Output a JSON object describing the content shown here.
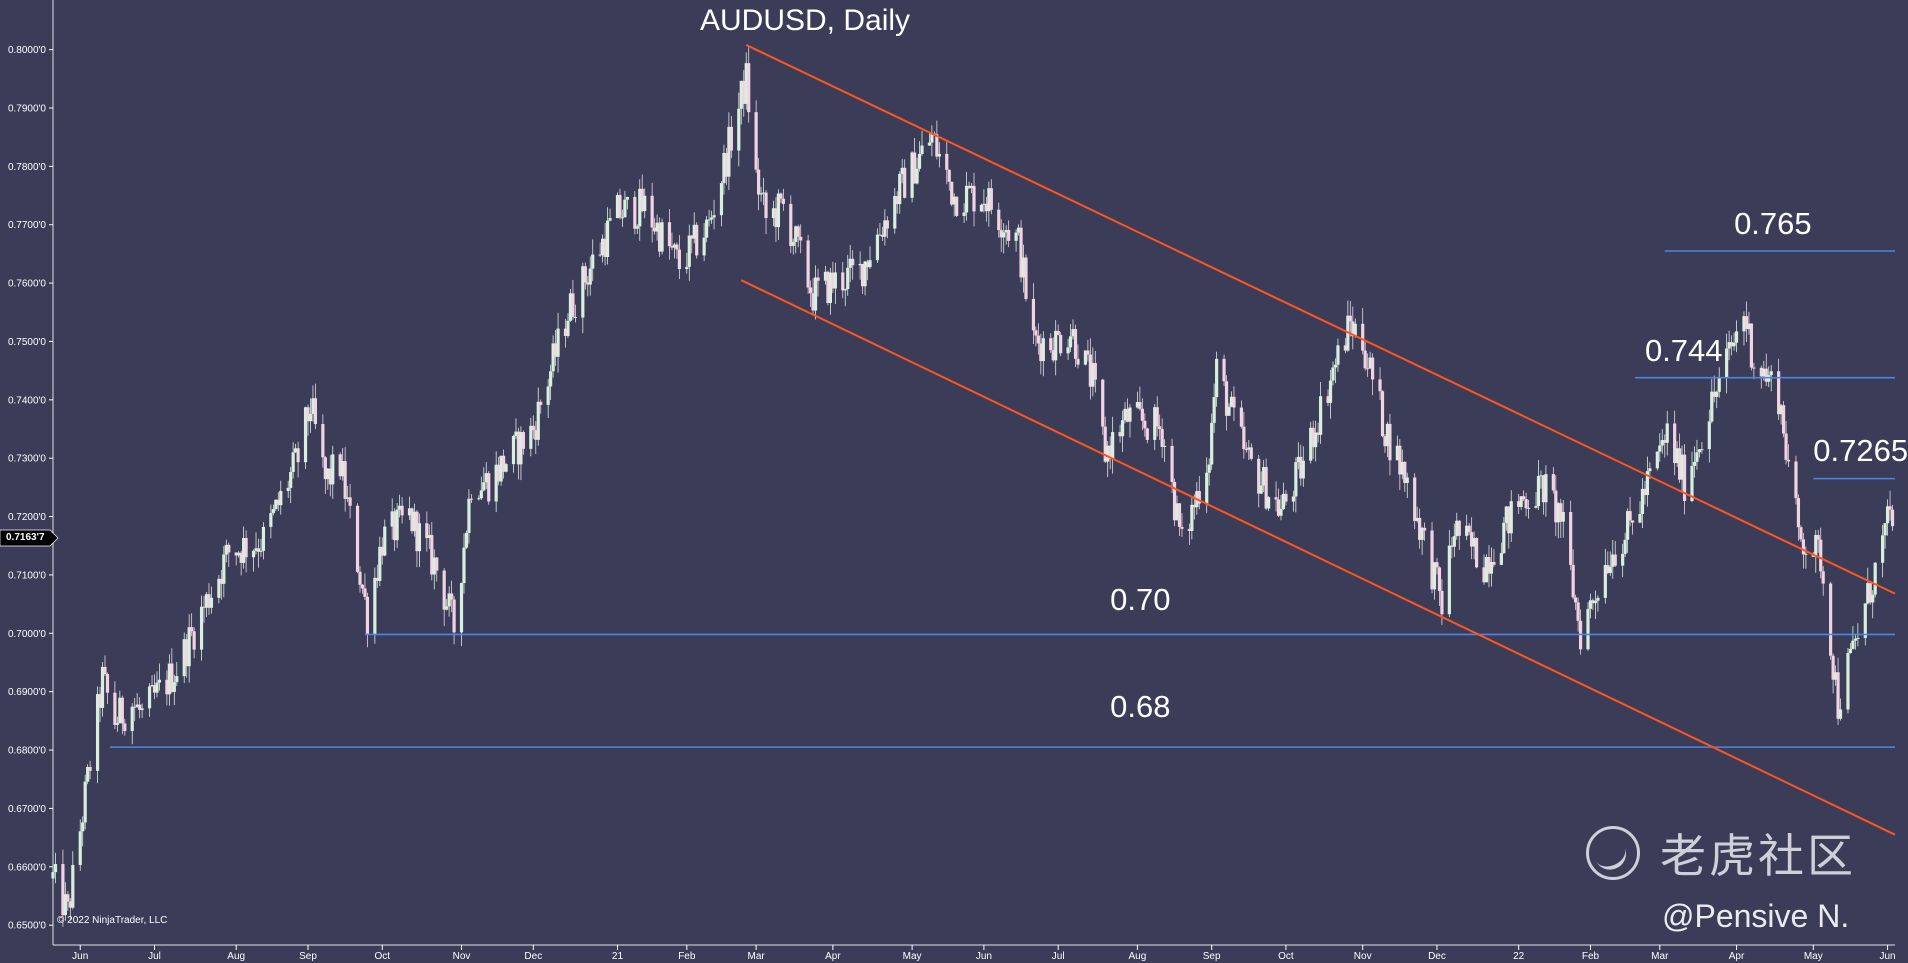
{
  "chart_data": {
    "type": "candlestick",
    "title": "AUDUSD, Daily",
    "y_tick_labels": [
      "0.8000'0",
      "0.7900'0",
      "0.7800'0",
      "0.7700'0",
      "0.7600'0",
      "0.7500'0",
      "0.7400'0",
      "0.7300'0",
      "0.7200'0",
      "0.7100'0",
      "0.7000'0",
      "0.6900'0",
      "0.6800'0",
      "0.6700'0",
      "0.6600'0",
      "0.6500'0"
    ],
    "y_tick_values": [
      0.8,
      0.79,
      0.78,
      0.77,
      0.76,
      0.75,
      0.74,
      0.73,
      0.72,
      0.71,
      0.7,
      0.69,
      0.68,
      0.67,
      0.66,
      0.65
    ],
    "ylim": [
      0.6466,
      0.8085
    ],
    "x_tick_labels": [
      "Jun",
      "Jul",
      "Aug",
      "Sep",
      "Oct",
      "Nov",
      "Dec",
      "21",
      "Feb",
      "Mar",
      "Apr",
      "May",
      "Jun",
      "Jul",
      "Aug",
      "Sep",
      "Oct",
      "Nov",
      "Dec",
      "22",
      "Feb",
      "Mar",
      "Apr",
      "May",
      "Jun"
    ],
    "x_tick_dates": [
      "2020-06-01",
      "2020-07-01",
      "2020-08-03",
      "2020-09-01",
      "2020-10-01",
      "2020-11-02",
      "2020-12-01",
      "2021-01-04",
      "2021-02-01",
      "2021-03-01",
      "2021-04-01",
      "2021-05-03",
      "2021-06-01",
      "2021-07-01",
      "2021-08-02",
      "2021-09-01",
      "2021-10-01",
      "2021-11-01",
      "2021-12-01",
      "2022-01-03",
      "2022-02-01",
      "2022-03-01",
      "2022-04-01",
      "2022-05-02",
      "2022-06-01"
    ],
    "xlim": [
      "2020-05-21",
      "2022-06-04"
    ],
    "close_path": [
      [
        "2020-05-21",
        0.658
      ],
      [
        "2020-05-27",
        0.652
      ],
      [
        "2020-06-10",
        0.692
      ],
      [
        "2020-06-15",
        0.685
      ],
      [
        "2020-06-22",
        0.688
      ],
      [
        "2020-06-26",
        0.686
      ],
      [
        "2020-07-10",
        0.694
      ],
      [
        "2020-07-31",
        0.714
      ],
      [
        "2020-08-14",
        0.716
      ],
      [
        "2020-08-28",
        0.73
      ],
      [
        "2020-09-02",
        0.739
      ],
      [
        "2020-09-08",
        0.726
      ],
      [
        "2020-09-14",
        0.729
      ],
      [
        "2020-09-25",
        0.703
      ],
      [
        "2020-10-01",
        0.716
      ],
      [
        "2020-10-12",
        0.72
      ],
      [
        "2020-10-23",
        0.711
      ],
      [
        "2020-10-30",
        0.701
      ],
      [
        "2020-11-06",
        0.726
      ],
      [
        "2020-11-13",
        0.726
      ],
      [
        "2020-12-01",
        0.735
      ],
      [
        "2020-12-15",
        0.755
      ],
      [
        "2021-01-04",
        0.772
      ],
      [
        "2021-01-15",
        0.773
      ],
      [
        "2021-01-29",
        0.763
      ],
      [
        "2021-02-10",
        0.77
      ],
      [
        "2021-02-25",
        0.795
      ],
      [
        "2021-03-01",
        0.778
      ],
      [
        "2021-03-05",
        0.771
      ],
      [
        "2021-03-12",
        0.773
      ],
      [
        "2021-03-24",
        0.758
      ],
      [
        "2021-04-01",
        0.76
      ],
      [
        "2021-04-12",
        0.762
      ],
      [
        "2021-04-28",
        0.776
      ],
      [
        "2021-05-11",
        0.785
      ],
      [
        "2021-05-20",
        0.775
      ],
      [
        "2021-06-01",
        0.775
      ],
      [
        "2021-06-08",
        0.771
      ],
      [
        "2021-06-15",
        0.767
      ],
      [
        "2021-06-21",
        0.75
      ],
      [
        "2021-06-30",
        0.75
      ],
      [
        "2021-07-06",
        0.752
      ],
      [
        "2021-07-15",
        0.743
      ],
      [
        "2021-07-20",
        0.731
      ],
      [
        "2021-07-29",
        0.737
      ],
      [
        "2021-08-12",
        0.735
      ],
      [
        "2021-08-20",
        0.715
      ],
      [
        "2021-08-31",
        0.731
      ],
      [
        "2021-09-03",
        0.745
      ],
      [
        "2021-09-15",
        0.73
      ],
      [
        "2021-09-29",
        0.721
      ],
      [
        "2021-10-07",
        0.728
      ],
      [
        "2021-10-20",
        0.745
      ],
      [
        "2021-10-27",
        0.753
      ],
      [
        "2021-11-01",
        0.75
      ],
      [
        "2021-11-10",
        0.735
      ],
      [
        "2021-11-19",
        0.726
      ],
      [
        "2021-12-03",
        0.705
      ],
      [
        "2021-12-08",
        0.718
      ],
      [
        "2021-12-20",
        0.712
      ],
      [
        "2022-01-04",
        0.723
      ],
      [
        "2022-01-13",
        0.725
      ],
      [
        "2022-01-20",
        0.72
      ],
      [
        "2022-01-28",
        0.7
      ],
      [
        "2022-02-08",
        0.713
      ],
      [
        "2022-02-17",
        0.718
      ],
      [
        "2022-03-04",
        0.734
      ],
      [
        "2022-03-11",
        0.726
      ],
      [
        "2022-03-21",
        0.738
      ],
      [
        "2022-04-04",
        0.755
      ],
      [
        "2022-04-08",
        0.747
      ],
      [
        "2022-04-18",
        0.741
      ],
      [
        "2022-04-26",
        0.717
      ],
      [
        "2022-05-05",
        0.713
      ],
      [
        "2022-05-12",
        0.688
      ],
      [
        "2022-05-24",
        0.706
      ],
      [
        "2022-05-31",
        0.717
      ],
      [
        "2022-06-03",
        0.721
      ]
    ],
    "annotations": [
      {
        "label": "0.765",
        "y": 0.7655,
        "x_start": "2022-03-03",
        "x_end": "2022-06-04",
        "color": "#4f84e0"
      },
      {
        "label": "0.744",
        "y": 0.7438,
        "x_start": "2022-02-19",
        "x_end": "2022-06-04",
        "color": "#4f84e0"
      },
      {
        "label": "0.7265",
        "y": 0.7265,
        "x_start": "2022-05-02",
        "x_end": "2022-06-04",
        "color": "#4f84e0"
      },
      {
        "label": "0.70",
        "y": 0.6998,
        "x_start": "2020-09-24",
        "x_end": "2022-06-04",
        "color": "#4f84e0"
      },
      {
        "label": "0.68",
        "y": 0.6805,
        "x_start": "2020-06-13",
        "x_end": "2022-06-04",
        "color": "#4f84e0"
      }
    ],
    "trendlines": [
      {
        "from": [
          "2021-02-25",
          0.8008
        ],
        "to": [
          "2022-06-04",
          0.7068
        ],
        "color": "#ff5520"
      },
      {
        "from": [
          "2021-02-23",
          0.7605
        ],
        "to": [
          "2022-06-04",
          0.6655
        ],
        "color": "#ff5520"
      }
    ],
    "last_price": "0.7163'7",
    "last_value": 0.71637,
    "colors": {
      "background": "#3a3c58",
      "up_candle": "#d9efdd",
      "down_candle": "#f2d3e4",
      "axis": "#ffffff",
      "level_line": "#4f84e0",
      "trendline": "#ff5520"
    }
  },
  "copyright": "© 2022 NinjaTrader, LLC",
  "watermark": {
    "text": "老虎社区",
    "icon": "tiger-community-logo-icon"
  },
  "credit": "@Pensive N."
}
